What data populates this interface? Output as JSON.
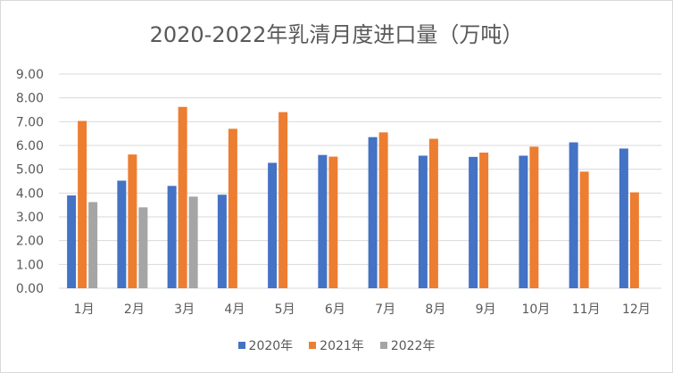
{
  "chart_data": {
    "type": "bar",
    "title": "2020-2022年乳清月度进口量（万吨）",
    "categories": [
      "1月",
      "2月",
      "3月",
      "4月",
      "5月",
      "6月",
      "7月",
      "8月",
      "9月",
      "10月",
      "11月",
      "12月"
    ],
    "series": [
      {
        "name": "2020年",
        "color": "#4472c4",
        "values": [
          3.9,
          4.52,
          4.3,
          3.93,
          5.27,
          5.6,
          6.35,
          5.57,
          5.52,
          5.57,
          6.13,
          5.87
        ]
      },
      {
        "name": "2021年",
        "color": "#ed7d31",
        "values": [
          7.03,
          5.62,
          7.62,
          6.7,
          7.4,
          5.53,
          6.55,
          6.28,
          5.7,
          5.95,
          4.9,
          4.03
        ]
      },
      {
        "name": "2022年",
        "color": "#a5a5a5",
        "values": [
          3.62,
          3.4,
          3.85,
          null,
          null,
          null,
          null,
          null,
          null,
          null,
          null,
          null
        ]
      }
    ],
    "ylim": [
      0,
      9
    ],
    "yticks": [
      "0.00",
      "1.00",
      "2.00",
      "3.00",
      "4.00",
      "5.00",
      "6.00",
      "7.00",
      "8.00",
      "9.00"
    ],
    "grid": true,
    "legend_position": "bottom"
  }
}
